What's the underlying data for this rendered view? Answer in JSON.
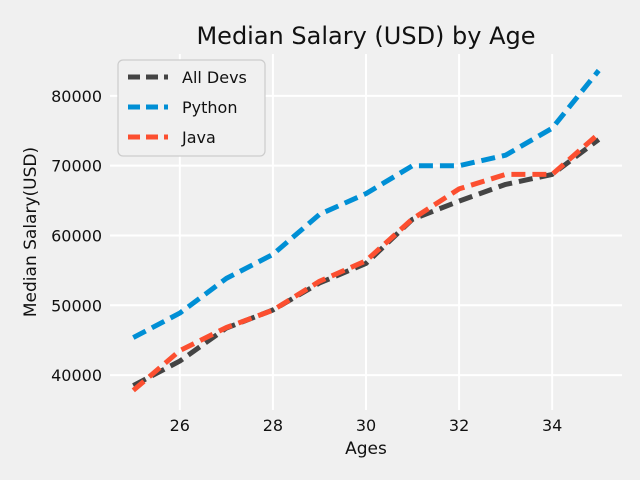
{
  "chart_data": {
    "type": "line",
    "title": "Median Salary (USD) by Age",
    "xlabel": "Ages",
    "ylabel": "Median Salary(USD)",
    "x": [
      25,
      26,
      27,
      28,
      29,
      30,
      31,
      32,
      33,
      34,
      35
    ],
    "xticks": [
      26,
      28,
      30,
      32,
      34
    ],
    "yticks": [
      40000,
      50000,
      60000,
      70000,
      80000
    ],
    "xlim": [
      24.5,
      35.5
    ],
    "ylim": [
      35000,
      86000
    ],
    "grid": true,
    "legend_position": "top-left",
    "series": [
      {
        "name": "All Devs",
        "color": "#444444",
        "values": [
          38496,
          42000,
          46752,
          49320,
          53200,
          56000,
          62316,
          64928,
          67317,
          68748,
          73752
        ]
      },
      {
        "name": "Python",
        "color": "#008fd5",
        "values": [
          45372,
          48876,
          53850,
          57287,
          63016,
          65998,
          70003,
          70000,
          71496,
          75370,
          83640
        ]
      },
      {
        "name": "Java",
        "color": "#fc4f30",
        "values": [
          37810,
          43515,
          46823,
          49293,
          53437,
          56373,
          62375,
          66674,
          68745,
          68746,
          74583
        ]
      }
    ]
  }
}
